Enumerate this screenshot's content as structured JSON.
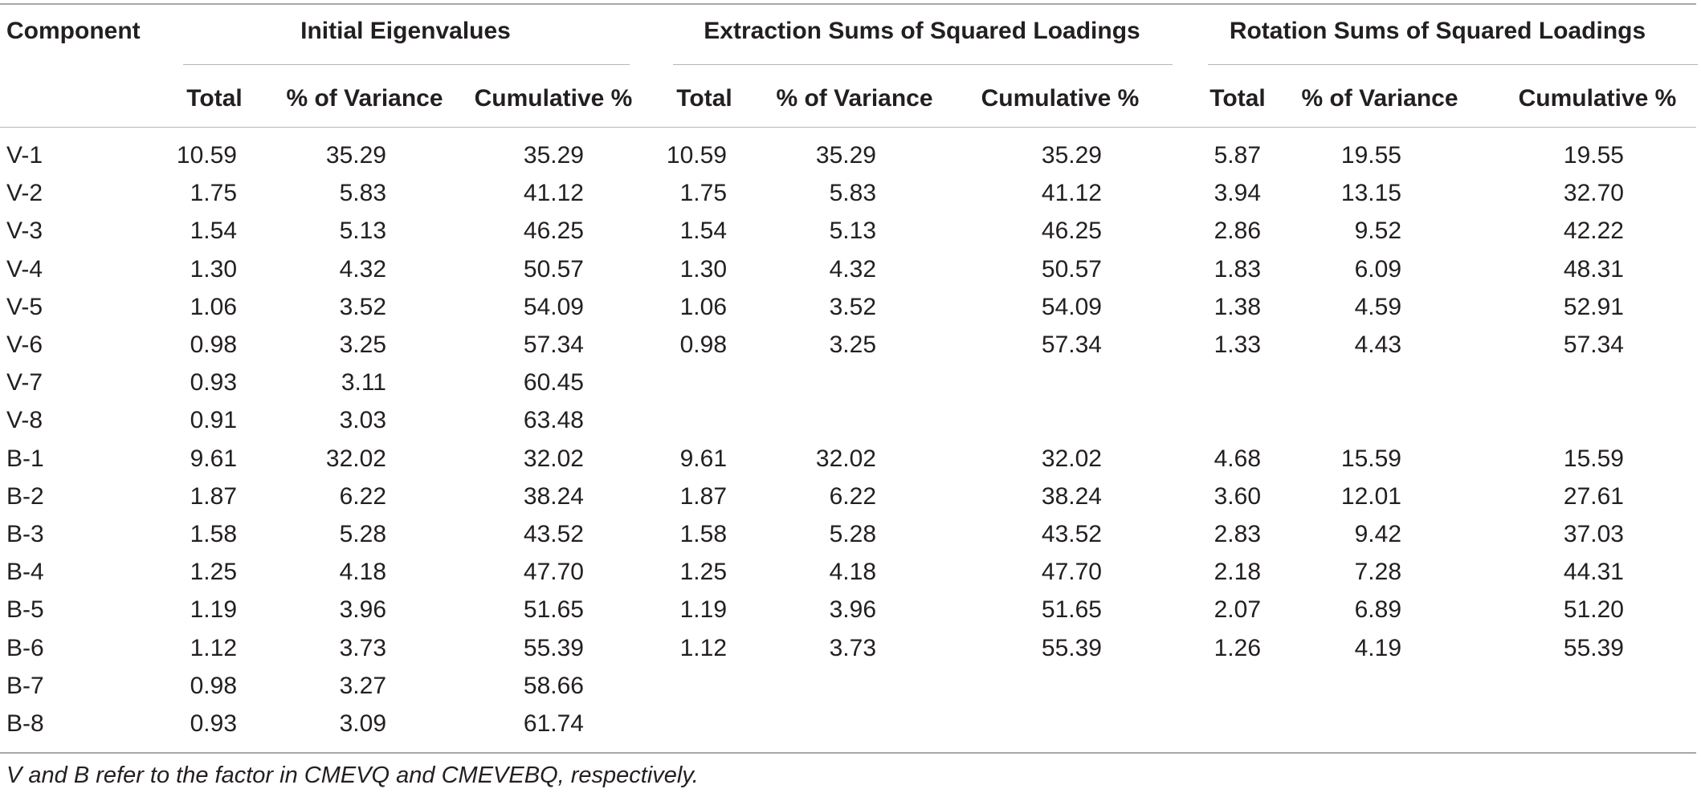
{
  "table": {
    "header": {
      "component": "Component",
      "groups": [
        "Initial Eigenvalues",
        "Extraction Sums of Squared Loadings",
        "Rotation Sums of Squared Loadings"
      ],
      "subcols": [
        "Total",
        "% of Variance",
        "Cumulative %",
        "Total",
        "% of Variance",
        "Cumulative %",
        "Total",
        "% of Variance",
        "Cumulative %"
      ]
    },
    "rows": [
      {
        "component": "V-1",
        "cells": [
          "10.59",
          "35.29",
          "35.29",
          "10.59",
          "35.29",
          "35.29",
          "5.87",
          "19.55",
          "19.55"
        ]
      },
      {
        "component": "V-2",
        "cells": [
          "1.75",
          "5.83",
          "41.12",
          "1.75",
          "5.83",
          "41.12",
          "3.94",
          "13.15",
          "32.70"
        ]
      },
      {
        "component": "V-3",
        "cells": [
          "1.54",
          "5.13",
          "46.25",
          "1.54",
          "5.13",
          "46.25",
          "2.86",
          "9.52",
          "42.22"
        ]
      },
      {
        "component": "V-4",
        "cells": [
          "1.30",
          "4.32",
          "50.57",
          "1.30",
          "4.32",
          "50.57",
          "1.83",
          "6.09",
          "48.31"
        ]
      },
      {
        "component": "V-5",
        "cells": [
          "1.06",
          "3.52",
          "54.09",
          "1.06",
          "3.52",
          "54.09",
          "1.38",
          "4.59",
          "52.91"
        ]
      },
      {
        "component": "V-6",
        "cells": [
          "0.98",
          "3.25",
          "57.34",
          "0.98",
          "3.25",
          "57.34",
          "1.33",
          "4.43",
          "57.34"
        ]
      },
      {
        "component": "V-7",
        "cells": [
          "0.93",
          "3.11",
          "60.45",
          "",
          "",
          "",
          "",
          "",
          ""
        ]
      },
      {
        "component": "V-8",
        "cells": [
          "0.91",
          "3.03",
          "63.48",
          "",
          "",
          "",
          "",
          "",
          ""
        ]
      },
      {
        "component": "B-1",
        "cells": [
          "9.61",
          "32.02",
          "32.02",
          "9.61",
          "32.02",
          "32.02",
          "4.68",
          "15.59",
          "15.59"
        ]
      },
      {
        "component": "B-2",
        "cells": [
          "1.87",
          "6.22",
          "38.24",
          "1.87",
          "6.22",
          "38.24",
          "3.60",
          "12.01",
          "27.61"
        ]
      },
      {
        "component": "B-3",
        "cells": [
          "1.58",
          "5.28",
          "43.52",
          "1.58",
          "5.28",
          "43.52",
          "2.83",
          "9.42",
          "37.03"
        ]
      },
      {
        "component": "B-4",
        "cells": [
          "1.25",
          "4.18",
          "47.70",
          "1.25",
          "4.18",
          "47.70",
          "2.18",
          "7.28",
          "44.31"
        ]
      },
      {
        "component": "B-5",
        "cells": [
          "1.19",
          "3.96",
          "51.65",
          "1.19",
          "3.96",
          "51.65",
          "2.07",
          "6.89",
          "51.20"
        ]
      },
      {
        "component": "B-6",
        "cells": [
          "1.12",
          "3.73",
          "55.39",
          "1.12",
          "3.73",
          "55.39",
          "1.26",
          "4.19",
          "55.39"
        ]
      },
      {
        "component": "B-7",
        "cells": [
          "0.98",
          "3.27",
          "58.66",
          "",
          "",
          "",
          "",
          "",
          ""
        ]
      },
      {
        "component": "B-8",
        "cells": [
          "0.93",
          "3.09",
          "61.74",
          "",
          "",
          "",
          "",
          "",
          ""
        ]
      }
    ],
    "footnote": "V and B refer to the factor in CMEVQ and CMEVEBQ, respectively."
  }
}
